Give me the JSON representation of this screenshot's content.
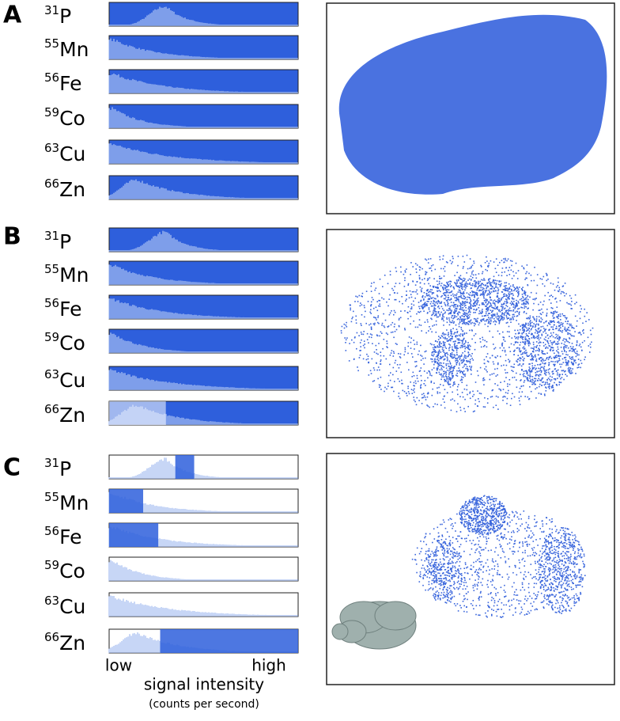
{
  "panels": [
    {
      "label": "A",
      "isotopes": [
        {
          "mass": "31",
          "element": "P"
        },
        {
          "mass": "55",
          "element": "Mn"
        },
        {
          "mass": "56",
          "element": "Fe"
        },
        {
          "mass": "59",
          "element": "Co"
        },
        {
          "mass": "63",
          "element": "Cu"
        },
        {
          "mass": "66",
          "element": "Zn"
        }
      ]
    },
    {
      "label": "B",
      "isotopes": [
        {
          "mass": "31",
          "element": "P"
        },
        {
          "mass": "55",
          "element": "Mn"
        },
        {
          "mass": "56",
          "element": "Fe"
        },
        {
          "mass": "59",
          "element": "Co"
        },
        {
          "mass": "63",
          "element": "Cu"
        },
        {
          "mass": "66",
          "element": "Zn"
        }
      ]
    },
    {
      "label": "C",
      "isotopes": [
        {
          "mass": "31",
          "element": "P"
        },
        {
          "mass": "55",
          "element": "Mn"
        },
        {
          "mass": "56",
          "element": "Fe"
        },
        {
          "mass": "59",
          "element": "Co"
        },
        {
          "mass": "63",
          "element": "Cu"
        },
        {
          "mass": "66",
          "element": "Zn"
        }
      ]
    }
  ],
  "axis": {
    "low": "low",
    "high": "high",
    "title": "signal intensity",
    "subtitle": "(counts per second)"
  }
}
